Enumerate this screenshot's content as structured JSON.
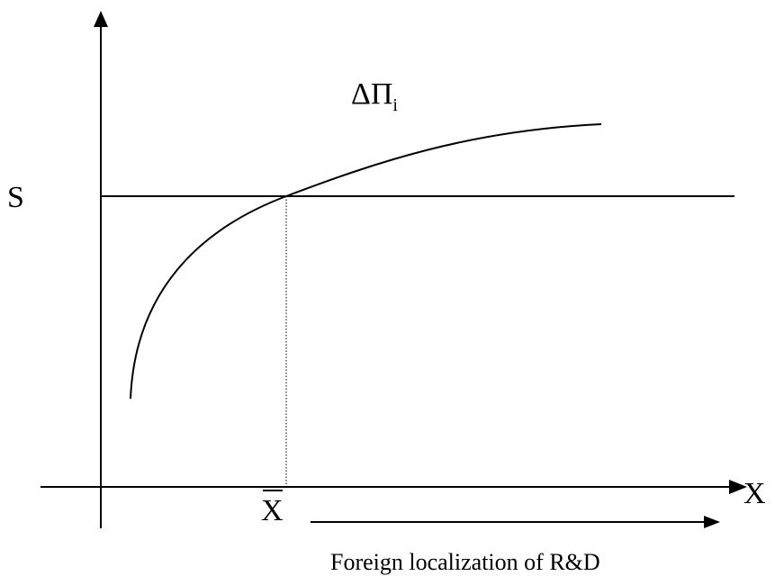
{
  "labels": {
    "y_axis": "S",
    "x_axis": "X",
    "curve_delta": "ΔΠ",
    "curve_subscript": "i",
    "threshold": "X",
    "direction_caption": "Foreign localization of R&D"
  },
  "colors": {
    "line": "#000000",
    "background": "#ffffff"
  }
}
